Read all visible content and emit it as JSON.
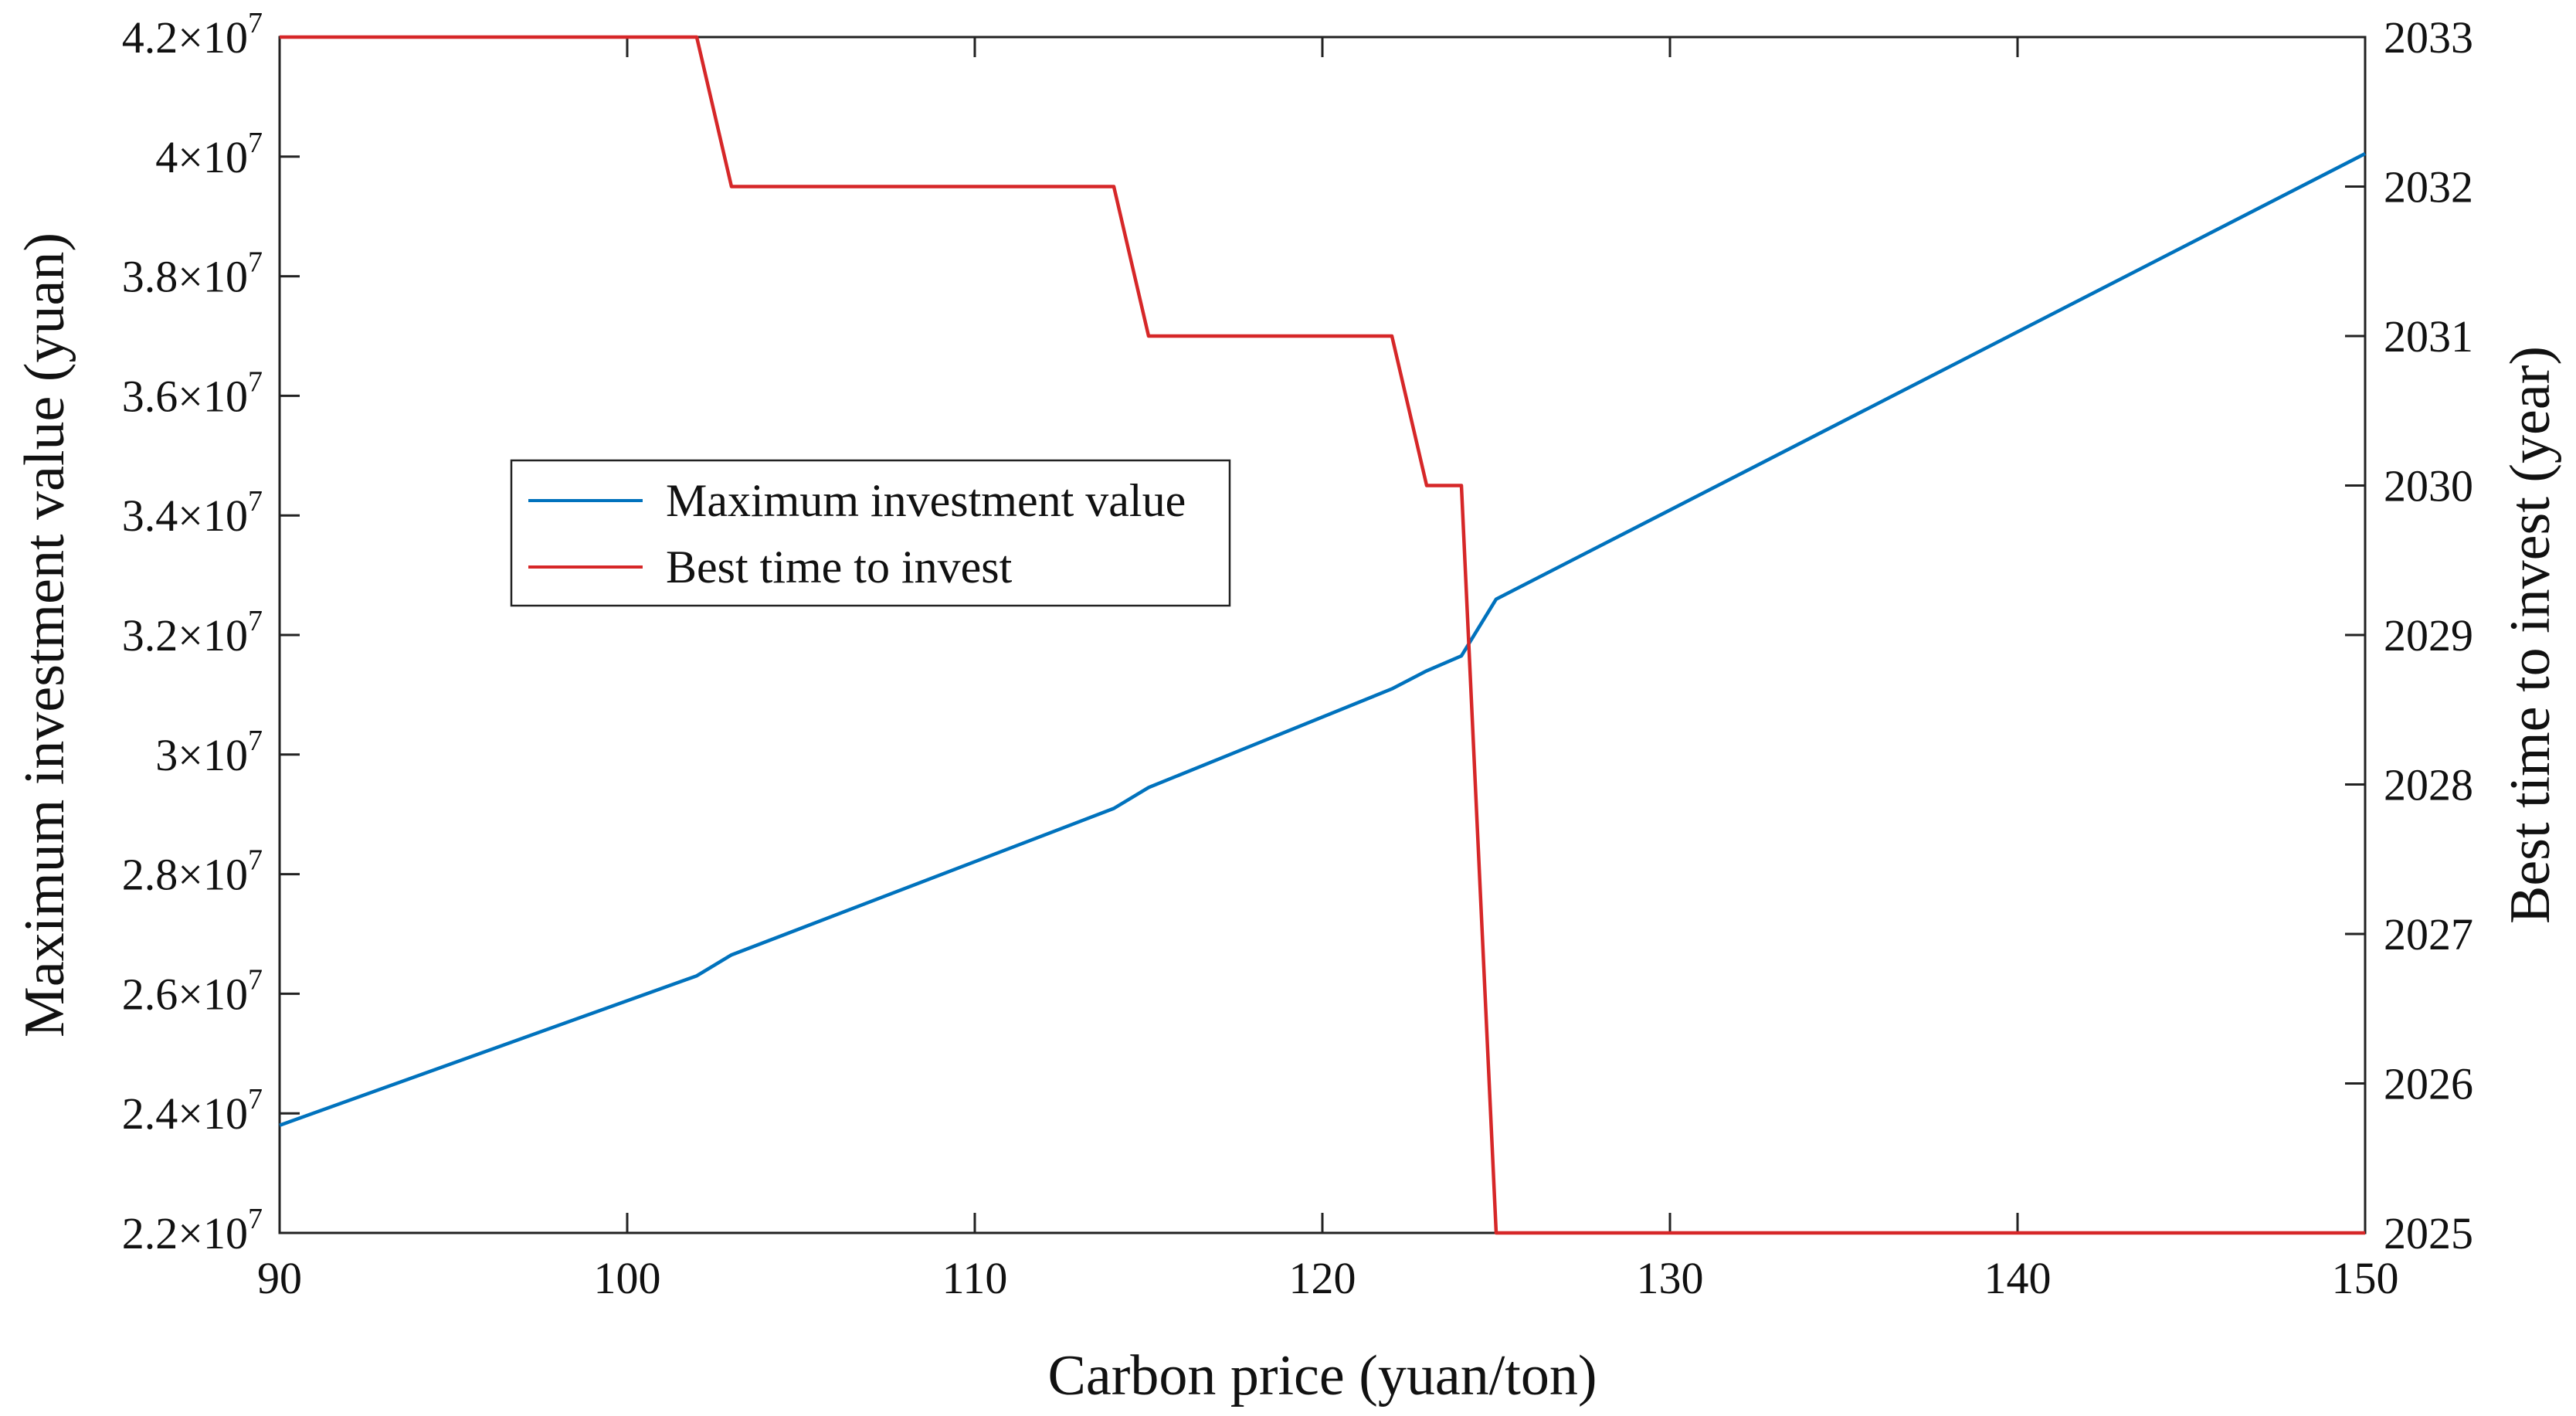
{
  "chart_data": {
    "type": "line",
    "title": "",
    "xlabel": "Carbon price (yuan/ton)",
    "ylabel_left": "Maximum investment value (yuan)",
    "ylabel_right": "Best time to invest (year)",
    "xlim": [
      90,
      150
    ],
    "ylim_left": [
      22000000,
      42000000
    ],
    "ylim_right": [
      2025,
      2033
    ],
    "x_ticks": [
      90,
      100,
      110,
      120,
      130,
      140,
      150
    ],
    "x_tick_labels": [
      "90",
      "100",
      "110",
      "120",
      "130",
      "140",
      "150"
    ],
    "y_left_ticks": [
      22000000,
      24000000,
      26000000,
      28000000,
      30000000,
      32000000,
      34000000,
      36000000,
      38000000,
      40000000,
      42000000
    ],
    "y_left_tick_labels": [
      {
        "mantissa": "2.2",
        "exponent": "7"
      },
      {
        "mantissa": "2.4",
        "exponent": "7"
      },
      {
        "mantissa": "2.6",
        "exponent": "7"
      },
      {
        "mantissa": "2.8",
        "exponent": "7"
      },
      {
        "mantissa": "3",
        "exponent": "7"
      },
      {
        "mantissa": "3.2",
        "exponent": "7"
      },
      {
        "mantissa": "3.4",
        "exponent": "7"
      },
      {
        "mantissa": "3.6",
        "exponent": "7"
      },
      {
        "mantissa": "3.8",
        "exponent": "7"
      },
      {
        "mantissa": "4",
        "exponent": "7"
      },
      {
        "mantissa": "4.2",
        "exponent": "7"
      }
    ],
    "y_left_tick_base": "×10",
    "y_right_ticks": [
      2025,
      2026,
      2027,
      2028,
      2029,
      2030,
      2031,
      2032,
      2033
    ],
    "y_right_tick_labels": [
      "2025",
      "2026",
      "2027",
      "2028",
      "2029",
      "2030",
      "2031",
      "2032",
      "2033"
    ],
    "legend_position": "center-left",
    "grid": false,
    "series": [
      {
        "name": "Maximum investment value",
        "axis": "left",
        "color": "#0072BD",
        "x": [
          90,
          102,
          103,
          114,
          115,
          122,
          123,
          124,
          125,
          150
        ],
        "y": [
          23800000,
          26300000,
          26650000,
          29100000,
          29450000,
          31100000,
          31400000,
          31650000,
          32600000,
          40050000
        ]
      },
      {
        "name": "Best time to invest",
        "axis": "right",
        "color": "#D62728",
        "x": [
          90,
          102,
          103,
          114,
          115,
          122,
          123,
          124,
          125,
          150
        ],
        "y": [
          2033,
          2033,
          2032,
          2032,
          2031,
          2031,
          2030,
          2030,
          2025,
          2025
        ]
      }
    ]
  }
}
